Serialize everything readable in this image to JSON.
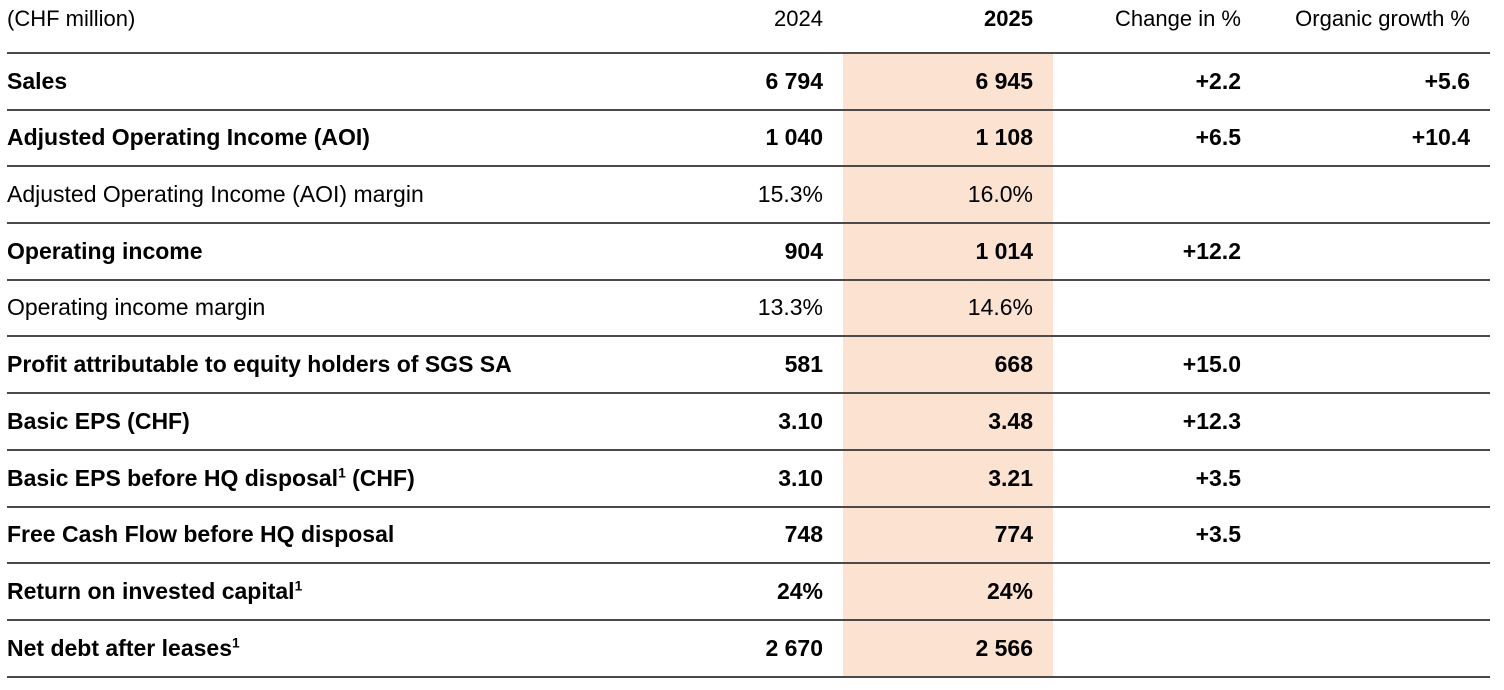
{
  "colors": {
    "highlight": "#fce2d1",
    "rule": "#4a4a4a",
    "text": "#000000"
  },
  "table": {
    "unit_label": "(CHF million)",
    "columns": {
      "y2024": "2024",
      "y2025": "2025",
      "change": "Change in %",
      "organic": "Organic growth %"
    },
    "rows": [
      {
        "label": "Sales",
        "sup": "",
        "suffix": "",
        "bold": true,
        "y2024": "6 794",
        "y2025": "6 945",
        "change": "+2.2",
        "organic": "+5.6"
      },
      {
        "label": "Adjusted Operating Income (AOI)",
        "sup": "",
        "suffix": "",
        "bold": true,
        "y2024": "1 040",
        "y2025": "1 108",
        "change": "+6.5",
        "organic": "+10.4"
      },
      {
        "label": "Adjusted Operating Income (AOI) margin",
        "sup": "",
        "suffix": "",
        "bold": false,
        "y2024": "15.3%",
        "y2025": "16.0%",
        "change": "",
        "organic": ""
      },
      {
        "label": "Operating income",
        "sup": "",
        "suffix": "",
        "bold": true,
        "y2024": "904",
        "y2025": "1 014",
        "change": "+12.2",
        "organic": ""
      },
      {
        "label": "Operating income margin",
        "sup": "",
        "suffix": "",
        "bold": false,
        "y2024": "13.3%",
        "y2025": "14.6%",
        "change": "",
        "organic": ""
      },
      {
        "label": "Profit attributable to equity holders of SGS SA",
        "sup": "",
        "suffix": "",
        "bold": true,
        "y2024": "581",
        "y2025": "668",
        "change": "+15.0",
        "organic": ""
      },
      {
        "label": "Basic EPS (CHF)",
        "sup": "",
        "suffix": "",
        "bold": true,
        "y2024": "3.10",
        "y2025": "3.48",
        "change": "+12.3",
        "organic": ""
      },
      {
        "label": "Basic EPS before HQ disposal",
        "sup": "1",
        "suffix": " (CHF)",
        "bold": true,
        "y2024": "3.10",
        "y2025": "3.21",
        "change": "+3.5",
        "organic": ""
      },
      {
        "label": "Free Cash Flow before HQ disposal",
        "sup": "",
        "suffix": "",
        "bold": true,
        "y2024": "748",
        "y2025": "774",
        "change": "+3.5",
        "organic": ""
      },
      {
        "label": "Return on invested capital",
        "sup": "1",
        "suffix": "",
        "bold": true,
        "y2024": "24%",
        "y2025": "24%",
        "change": "",
        "organic": ""
      },
      {
        "label": "Net debt after leases",
        "sup": "1",
        "suffix": "",
        "bold": true,
        "y2024": "2 670",
        "y2025": "2 566",
        "change": "",
        "organic": ""
      }
    ]
  }
}
